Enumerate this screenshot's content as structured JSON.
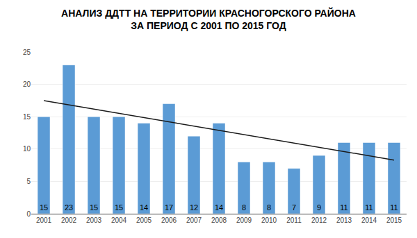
{
  "chart_data": {
    "type": "bar",
    "title": "АНАЛИЗ ДДТТ НА ТЕРРИТОРИИ КРАСНОГОРСКОГО РАЙОНА\nЗА ПЕРИОД С 2001 ПО 2015 ГОД",
    "categories": [
      "2001",
      "2002",
      "2003",
      "2004",
      "2005",
      "2006",
      "2007",
      "2008",
      "2009",
      "2010",
      "2011",
      "2012",
      "2013",
      "2014",
      "2015"
    ],
    "values": [
      15,
      23,
      15,
      15,
      14,
      17,
      12,
      14,
      8,
      8,
      7,
      9,
      11,
      11,
      11
    ],
    "color": "#5B9BD5",
    "data_labels": true,
    "trend": {
      "start": 17.5,
      "end": 8.3,
      "color": "#1A1A1A"
    },
    "ylim": [
      0,
      25
    ],
    "yticks": [
      0,
      5,
      10,
      15,
      20,
      25
    ],
    "grid": true
  }
}
